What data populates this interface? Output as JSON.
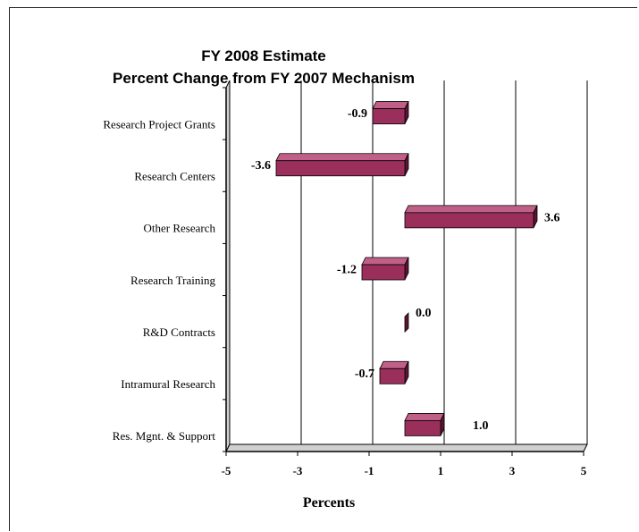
{
  "chart_data": {
    "type": "bar",
    "orientation": "horizontal",
    "title": "FY 2008 Estimate",
    "subtitle": "Percent Change from FY 2007 Mechanism",
    "categories": [
      "Research Project Grants",
      "Research Centers",
      "Other Research",
      "Research Training",
      "R&D Contracts",
      "Intramural Research",
      "Res. Mgnt. & Support"
    ],
    "values": [
      -0.9,
      -3.6,
      3.6,
      -1.2,
      0.0,
      -0.7,
      1.0
    ],
    "value_labels": [
      "-0.9",
      "-3.6",
      "3.6",
      "-1.2",
      "0.0",
      "-0.7",
      "1.0"
    ],
    "xlabel": "Percents",
    "ylabel": "",
    "xlim": [
      -5,
      5
    ],
    "x_ticks": [
      -5,
      -3,
      -1,
      1,
      3,
      5
    ],
    "x_tick_labels": [
      "-5",
      "-3",
      "-1",
      "1",
      "3",
      "5"
    ],
    "grid": "vertical",
    "style": "3d",
    "colors": {
      "bar_front": "#9b2f5c",
      "bar_top": "#c06088",
      "bar_side": "#5e1434",
      "grid": "#000000",
      "wall": "#ffffff"
    }
  }
}
